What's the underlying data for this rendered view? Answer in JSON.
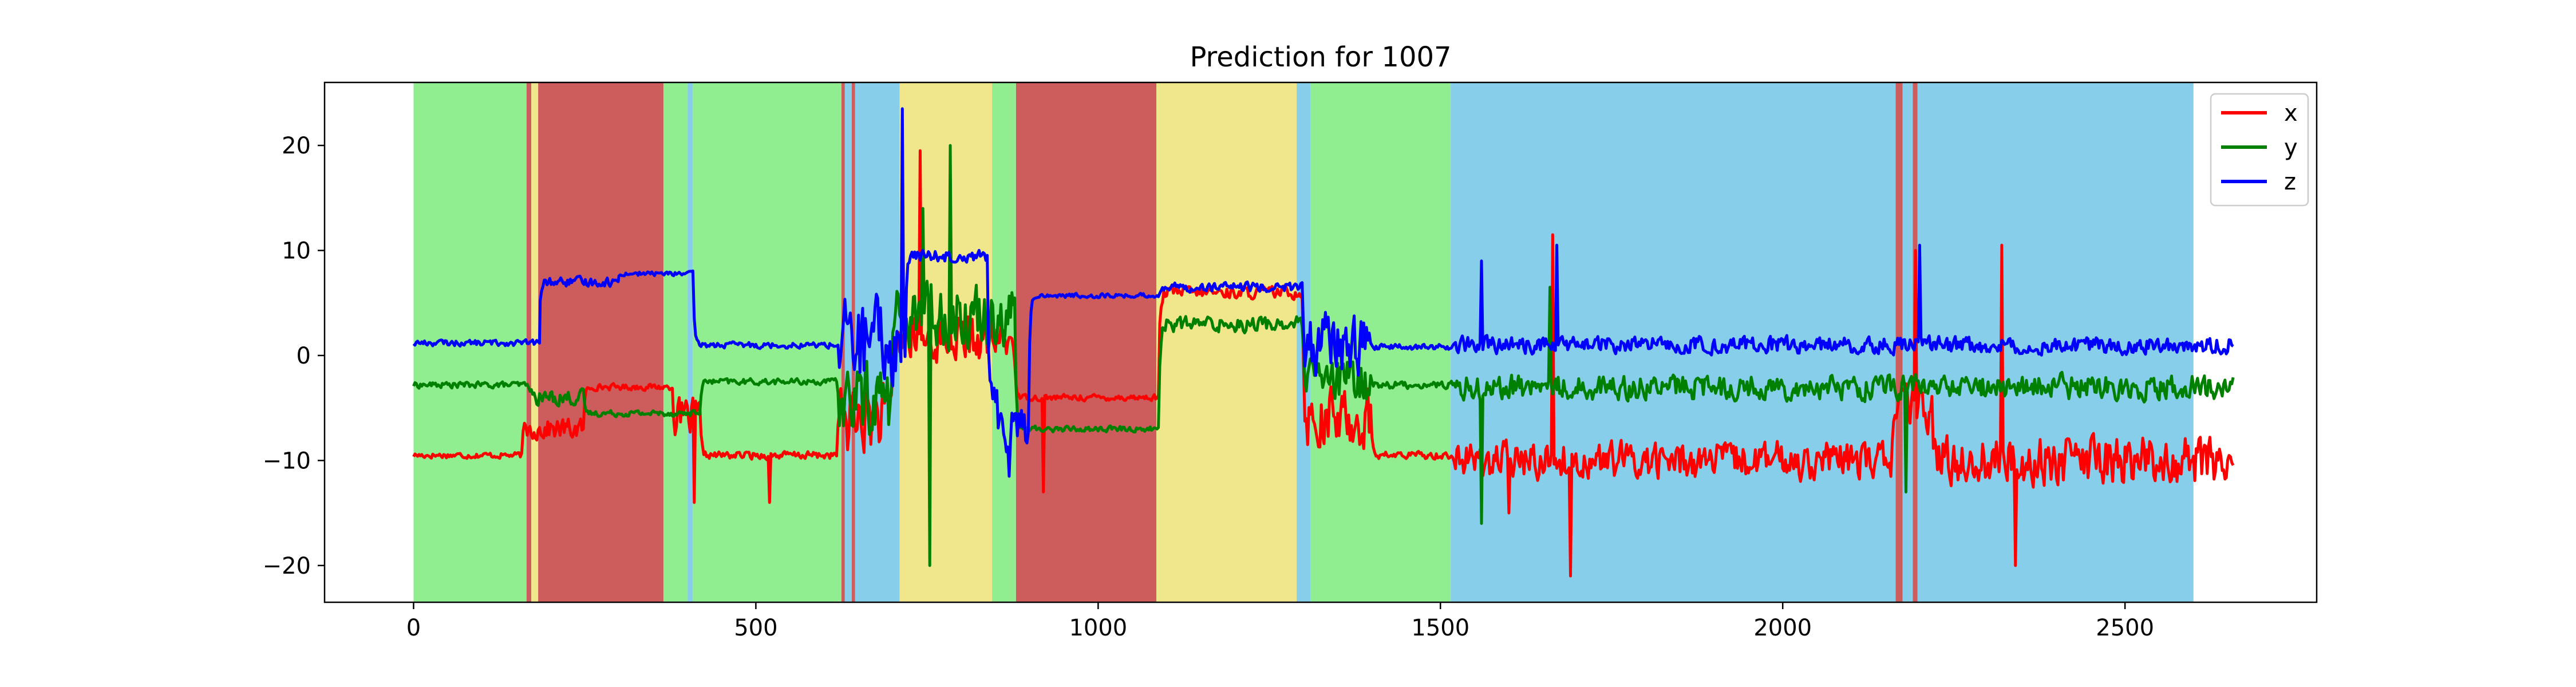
{
  "chart_data": {
    "type": "line",
    "title": "Prediction for 1007",
    "xlabel": "",
    "ylabel": "",
    "xlim": [
      -130,
      2780
    ],
    "ylim": [
      -23.5,
      26.0
    ],
    "xticks": [
      0,
      500,
      1000,
      1500,
      2000,
      2500
    ],
    "yticks": [
      -20,
      -10,
      0,
      10,
      20
    ],
    "ytick_labels": [
      "−20",
      "−10",
      "0",
      "10",
      "20"
    ],
    "grid": false,
    "legend": {
      "location": "upper right",
      "entries": [
        "x",
        "y",
        "z"
      ]
    },
    "series": [
      {
        "name": "x",
        "color": "#ff0000",
        "segments": [
          {
            "start": 0,
            "end": 160,
            "level": -9.5,
            "noise": 0.4
          },
          {
            "start": 160,
            "end": 250,
            "level": -7.0,
            "noise": 1.4
          },
          {
            "start": 250,
            "end": 380,
            "level": -3.0,
            "noise": 0.4
          },
          {
            "start": 380,
            "end": 420,
            "level": -6.0,
            "noise": 2.5
          },
          {
            "start": 420,
            "end": 620,
            "level": -9.5,
            "noise": 0.5
          },
          {
            "start": 620,
            "end": 700,
            "level": -6.0,
            "noise": 4.5
          },
          {
            "start": 700,
            "end": 880,
            "level": 1.5,
            "noise": 3.0
          },
          {
            "start": 880,
            "end": 1090,
            "level": -4.0,
            "noise": 0.4
          },
          {
            "start": 1090,
            "end": 1300,
            "level": 6.0,
            "noise": 0.8
          },
          {
            "start": 1300,
            "end": 1400,
            "level": -6.0,
            "noise": 4.0
          },
          {
            "start": 1400,
            "end": 1520,
            "level": -9.5,
            "noise": 0.5
          },
          {
            "start": 1520,
            "end": 2160,
            "level": -10.0,
            "noise": 2.4
          },
          {
            "start": 2160,
            "end": 2220,
            "level": -5.0,
            "noise": 3.0
          },
          {
            "start": 2220,
            "end": 2660,
            "level": -10.0,
            "noise": 3.2
          }
        ],
        "spikes": [
          [
            410,
            -14.0
          ],
          [
            520,
            -14.0
          ],
          [
            740,
            19.5
          ],
          [
            920,
            -13.0
          ],
          [
            1600,
            -15.0
          ],
          [
            1665,
            11.5
          ],
          [
            1690,
            -21.0
          ],
          [
            2340,
            -20.0
          ],
          [
            2320,
            10.5
          ],
          [
            2195,
            10.0
          ]
        ]
      },
      {
        "name": "y",
        "color": "#008000",
        "segments": [
          {
            "start": 0,
            "end": 170,
            "level": -2.8,
            "noise": 0.4
          },
          {
            "start": 170,
            "end": 250,
            "level": -4.0,
            "noise": 1.0
          },
          {
            "start": 250,
            "end": 420,
            "level": -5.5,
            "noise": 0.4
          },
          {
            "start": 420,
            "end": 620,
            "level": -2.5,
            "noise": 0.4
          },
          {
            "start": 620,
            "end": 700,
            "level": -4.0,
            "noise": 5.0
          },
          {
            "start": 700,
            "end": 880,
            "level": 4.0,
            "noise": 4.0
          },
          {
            "start": 880,
            "end": 1090,
            "level": -7.0,
            "noise": 0.4
          },
          {
            "start": 1090,
            "end": 1300,
            "level": 3.0,
            "noise": 1.0
          },
          {
            "start": 1300,
            "end": 1400,
            "level": -2.5,
            "noise": 3.0
          },
          {
            "start": 1400,
            "end": 1520,
            "level": -2.8,
            "noise": 0.5
          },
          {
            "start": 1520,
            "end": 2660,
            "level": -3.0,
            "noise": 1.6
          }
        ],
        "spikes": [
          [
            755,
            -20.0
          ],
          [
            785,
            20.0
          ],
          [
            745,
            14.0
          ],
          [
            1560,
            -16.0
          ],
          [
            1660,
            6.5
          ],
          [
            2180,
            -13.0
          ]
        ]
      },
      {
        "name": "z",
        "color": "#0000ff",
        "segments": [
          {
            "start": 0,
            "end": 185,
            "level": 1.2,
            "noise": 0.4
          },
          {
            "start": 185,
            "end": 300,
            "level": 7.0,
            "noise": 0.6
          },
          {
            "start": 300,
            "end": 410,
            "level": 7.8,
            "noise": 0.3
          },
          {
            "start": 410,
            "end": 620,
            "level": 1.0,
            "noise": 0.4
          },
          {
            "start": 620,
            "end": 720,
            "level": 1.0,
            "noise": 6.0
          },
          {
            "start": 720,
            "end": 840,
            "level": 9.5,
            "noise": 0.8
          },
          {
            "start": 840,
            "end": 900,
            "level": -6.0,
            "noise": 4.0
          },
          {
            "start": 900,
            "end": 1090,
            "level": 5.7,
            "noise": 0.3
          },
          {
            "start": 1090,
            "end": 1300,
            "level": 6.5,
            "noise": 0.6
          },
          {
            "start": 1300,
            "end": 1400,
            "level": 1.0,
            "noise": 4.0
          },
          {
            "start": 1400,
            "end": 1520,
            "level": 0.8,
            "noise": 0.4
          },
          {
            "start": 1520,
            "end": 2660,
            "level": 1.0,
            "noise": 1.1
          }
        ],
        "spikes": [
          [
            715,
            23.5
          ],
          [
            2200,
            10.5
          ],
          [
            870,
            -11.5
          ],
          [
            1560,
            9.0
          ],
          [
            1670,
            10.5
          ]
        ]
      }
    ],
    "background_spans": [
      {
        "start": 0,
        "end": 165,
        "label": "green"
      },
      {
        "start": 165,
        "end": 172,
        "label": "red"
      },
      {
        "start": 172,
        "end": 182,
        "label": "yellow"
      },
      {
        "start": 182,
        "end": 365,
        "label": "red"
      },
      {
        "start": 365,
        "end": 400,
        "label": "green"
      },
      {
        "start": 400,
        "end": 408,
        "label": "blue"
      },
      {
        "start": 408,
        "end": 625,
        "label": "green"
      },
      {
        "start": 625,
        "end": 630,
        "label": "red"
      },
      {
        "start": 630,
        "end": 640,
        "label": "blue"
      },
      {
        "start": 640,
        "end": 645,
        "label": "red"
      },
      {
        "start": 645,
        "end": 710,
        "label": "blue"
      },
      {
        "start": 710,
        "end": 845,
        "label": "yellow"
      },
      {
        "start": 845,
        "end": 880,
        "label": "green"
      },
      {
        "start": 880,
        "end": 1085,
        "label": "red"
      },
      {
        "start": 1085,
        "end": 1290,
        "label": "yellow"
      },
      {
        "start": 1290,
        "end": 1310,
        "label": "blue"
      },
      {
        "start": 1310,
        "end": 1515,
        "label": "green"
      },
      {
        "start": 1515,
        "end": 2165,
        "label": "blue"
      },
      {
        "start": 2165,
        "end": 2175,
        "label": "red"
      },
      {
        "start": 2175,
        "end": 2190,
        "label": "blue"
      },
      {
        "start": 2190,
        "end": 2197,
        "label": "red"
      },
      {
        "start": 2197,
        "end": 2600,
        "label": "blue"
      }
    ],
    "span_colors": {
      "green": "#90ee90",
      "red": "#cd5c5c",
      "yellow": "#f0e68c",
      "blue": "#87ceeb"
    }
  }
}
